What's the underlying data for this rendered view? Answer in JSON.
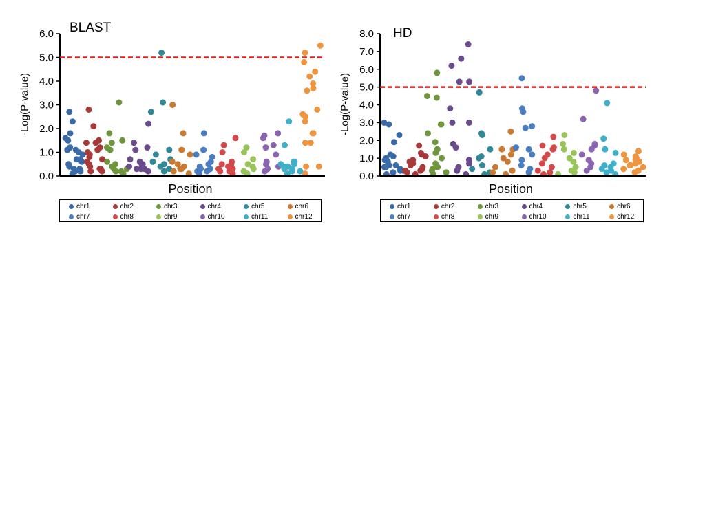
{
  "chart_data": [
    {
      "type": "scatter",
      "title": "BLAST",
      "xlabel": "Position",
      "ylabel": "-Log(P-value)",
      "ylim": [
        0,
        6
      ],
      "yticks": [
        "0.0",
        "1.0",
        "2.0",
        "3.0",
        "4.0",
        "5.0",
        "6.0"
      ],
      "threshold": 5.0,
      "threshold_color": "#e02020",
      "legend_position": "bottom",
      "series": [
        {
          "name": "chr1",
          "color": "#3b6aa8",
          "values": [
            0.7,
            0.6,
            0.4,
            1.6,
            1.5,
            1.0,
            1.1,
            1.2,
            0.3,
            1.8,
            1.1,
            0.2,
            0.9,
            0.3,
            2.7,
            2.3,
            0.1,
            0.2,
            0.5,
            0.7
          ]
        },
        {
          "name": "chr2",
          "color": "#a83a3a",
          "values": [
            1.0,
            0.2,
            1.2,
            1.4,
            0.4,
            0.6,
            0.3,
            0.9,
            1.4,
            1.5,
            0.8,
            2.1,
            2.8,
            1.1,
            0.5,
            0.3,
            0.7,
            0.2
          ]
        },
        {
          "name": "chr3",
          "color": "#6f963c",
          "values": [
            3.1,
            1.5,
            1.1,
            0.6,
            0.4,
            0.2,
            0.3,
            1.8,
            1.4,
            1.2,
            0.1,
            0.3,
            0.5,
            0.2
          ]
        },
        {
          "name": "chr4",
          "color": "#6a4b8c",
          "values": [
            0.7,
            0.5,
            0.3,
            2.2,
            1.4,
            0.3,
            1.2,
            0.4,
            0.2,
            1.1,
            0.3,
            0.6,
            0.5
          ]
        },
        {
          "name": "chr5",
          "color": "#318896",
          "values": [
            5.2,
            3.1,
            2.7,
            1.1,
            0.9,
            0.6,
            0.4,
            0.3,
            0.2,
            0.5,
            0.7
          ]
        },
        {
          "name": "chr6",
          "color": "#c87a32",
          "values": [
            3.0,
            1.8,
            1.1,
            0.9,
            0.5,
            0.3,
            0.2,
            0.1,
            0.3,
            0.6,
            0.4
          ]
        },
        {
          "name": "chr7",
          "color": "#4a7ec0",
          "values": [
            1.8,
            1.1,
            0.8,
            0.6,
            0.4,
            0.3,
            0.2,
            0.5,
            0.9,
            0.3,
            0.2,
            0.1
          ]
        },
        {
          "name": "chr8",
          "color": "#d44a4a",
          "values": [
            1.6,
            1.3,
            1.0,
            0.6,
            0.5,
            0.3,
            0.2,
            0.4,
            0.1,
            0.2,
            0.5,
            0.3
          ]
        },
        {
          "name": "chr9",
          "color": "#98c45a",
          "values": [
            1.2,
            1.0,
            0.7,
            0.4,
            0.2,
            0.1,
            0.3,
            0.5
          ]
        },
        {
          "name": "chr10",
          "color": "#8a64b0",
          "values": [
            1.8,
            1.7,
            1.6,
            1.3,
            1.2,
            0.9,
            0.6,
            0.3,
            0.2,
            0.5,
            0.4
          ]
        },
        {
          "name": "chr11",
          "color": "#3fb0c8",
          "values": [
            2.3,
            1.3,
            0.6,
            0.5,
            0.4,
            0.3,
            0.2,
            0.1,
            0.5,
            0.6,
            0.3,
            0.2,
            0.4
          ]
        },
        {
          "name": "chr12",
          "color": "#f0953f",
          "values": [
            5.5,
            5.2,
            4.8,
            4.4,
            4.2,
            3.9,
            3.7,
            3.6,
            2.8,
            2.6,
            2.5,
            2.3,
            1.8,
            1.8,
            1.4,
            1.4,
            0.4,
            0.4,
            0.1
          ]
        }
      ]
    },
    {
      "type": "scatter",
      "title": "HD",
      "xlabel": "Position",
      "ylabel": "-Log(P-value)",
      "ylim": [
        0,
        8
      ],
      "yticks": [
        "0.0",
        "1.0",
        "2.0",
        "3.0",
        "4.0",
        "5.0",
        "6.0",
        "7.0",
        "8.0"
      ],
      "threshold": 5.0,
      "threshold_color": "#e02020",
      "legend_position": "bottom",
      "series": [
        {
          "name": "chr1",
          "color": "#3b6aa8",
          "values": [
            1.9,
            0.4,
            0.3,
            1.0,
            1.1,
            3.0,
            2.9,
            0.2,
            0.5,
            1.2,
            0.8,
            0.6,
            2.3,
            0.5,
            0.1,
            0.3,
            0.6,
            0.9
          ]
        },
        {
          "name": "chr2",
          "color": "#a83a3a",
          "values": [
            1.1,
            0.3,
            0.6,
            0.2,
            0.1,
            0.7,
            0.4,
            0.9,
            1.3,
            1.7,
            1.2,
            0.5,
            0.3,
            0.8
          ]
        },
        {
          "name": "chr3",
          "color": "#6f963c",
          "values": [
            4.4,
            2.9,
            2.9,
            2.4,
            1.5,
            1.0,
            0.7,
            0.4,
            5.8,
            4.5,
            1.9,
            1.3,
            0.3,
            0.1,
            0.2,
            0.5
          ]
        },
        {
          "name": "chr4",
          "color": "#6a4b8c",
          "values": [
            7.4,
            6.6,
            6.2,
            5.3,
            5.3,
            3.8,
            3.0,
            3.0,
            1.8,
            1.6,
            0.9,
            0.7,
            0.5,
            0.3,
            0.1
          ]
        },
        {
          "name": "chr5",
          "color": "#318896",
          "values": [
            4.7,
            2.4,
            2.3,
            1.5,
            1.1,
            1.0,
            0.6,
            0.4,
            0.2,
            0.1
          ]
        },
        {
          "name": "chr6",
          "color": "#c87a32",
          "values": [
            2.5,
            1.5,
            1.5,
            1.2,
            1.0,
            0.8,
            0.5,
            0.3,
            0.1,
            0.2
          ]
        },
        {
          "name": "chr7",
          "color": "#4a7ec0",
          "values": [
            5.5,
            3.8,
            3.6,
            2.8,
            2.7,
            1.6,
            1.5,
            1.2,
            0.9,
            0.6,
            0.4,
            0.2
          ]
        },
        {
          "name": "chr8",
          "color": "#d44a4a",
          "values": [
            2.2,
            1.7,
            1.6,
            1.5,
            1.2,
            1.0,
            0.7,
            0.5,
            0.3,
            0.2,
            0.1
          ]
        },
        {
          "name": "chr9",
          "color": "#98c45a",
          "values": [
            2.3,
            1.8,
            1.5,
            1.3,
            1.0,
            0.8,
            0.5,
            0.3,
            0.2,
            0.1
          ]
        },
        {
          "name": "chr10",
          "color": "#8a64b0",
          "values": [
            4.8,
            3.2,
            1.8,
            1.7,
            1.5,
            1.2,
            0.9,
            0.7,
            0.5,
            0.3
          ]
        },
        {
          "name": "chr11",
          "color": "#3fb0c8",
          "values": [
            4.1,
            2.1,
            1.5,
            1.3,
            0.7,
            0.5,
            0.4,
            0.3,
            0.2,
            0.1,
            0.6
          ]
        },
        {
          "name": "chr12",
          "color": "#f0953f",
          "values": [
            1.4,
            1.2,
            1.1,
            1.0,
            0.9,
            0.8,
            0.7,
            0.6,
            0.5,
            0.4,
            0.3,
            0.2,
            0.6,
            0.9
          ]
        }
      ]
    }
  ]
}
